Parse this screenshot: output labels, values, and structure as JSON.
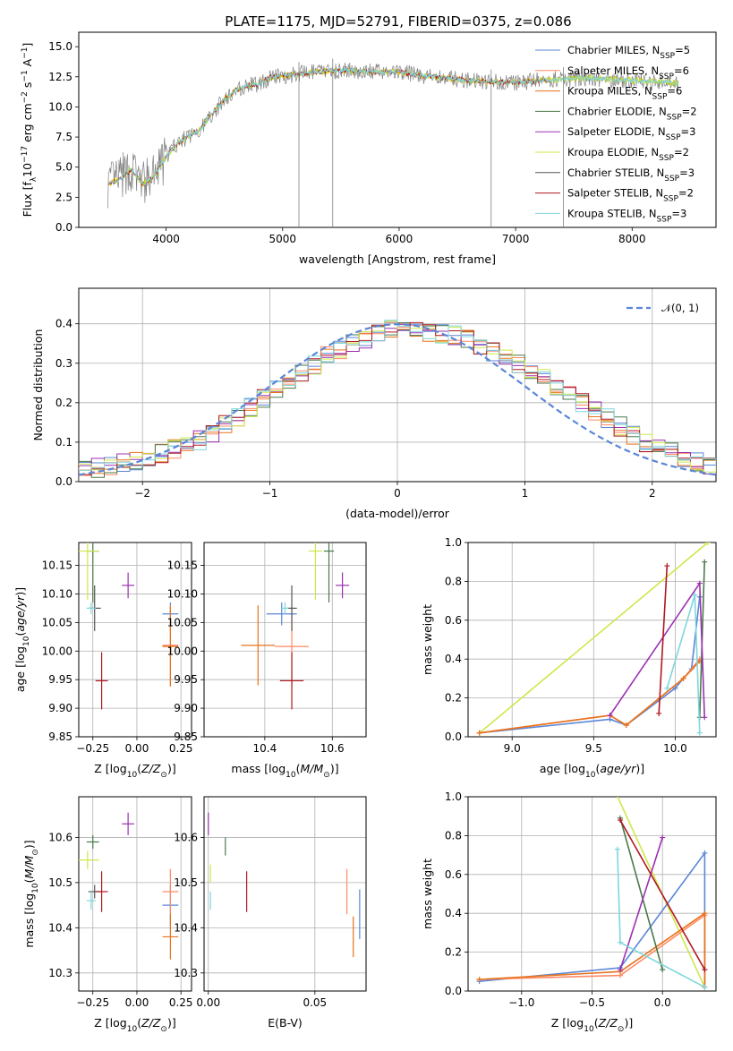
{
  "title": "PLATE=1175, MJD=52791, FIBERID=0375, z=0.086",
  "colors": {
    "Chabrier MILES": "#5b86d6",
    "Salpeter MILES": "#ff8a65",
    "Kroupa MILES": "#e8731c",
    "Chabrier ELODIE": "#4a7a4a",
    "Salpeter ELODIE": "#9b30b0",
    "Kroupa ELODIE": "#cde84a",
    "Chabrier STELIB": "#555555",
    "Salpeter STELIB": "#b01820",
    "Kroupa STELIB": "#7fd6dc",
    "model_spectrum": "#d4d400",
    "gaussian": "#5b86d6"
  },
  "legend_spectrum": [
    {
      "text": "Chabrier MILES, N",
      "sub": "SSP",
      "val": "=5",
      "color": "#5b86d6"
    },
    {
      "text": "Salpeter MILES, N",
      "sub": "SSP",
      "val": "=6",
      "color": "#ff8a65"
    },
    {
      "text": "Kroupa MILES, N",
      "sub": "SSP",
      "val": "=6",
      "color": "#e8731c"
    },
    {
      "text": "Chabrier ELODIE, N",
      "sub": "SSP",
      "val": "=2",
      "color": "#4a7a4a"
    },
    {
      "text": "Salpeter ELODIE, N",
      "sub": "SSP",
      "val": "=3",
      "color": "#9b30b0"
    },
    {
      "text": "Kroupa ELODIE, N",
      "sub": "SSP",
      "val": "=2",
      "color": "#cde84a"
    },
    {
      "text": "Chabrier STELIB, N",
      "sub": "SSP",
      "val": "=3",
      "color": "#555555"
    },
    {
      "text": "Salpeter STELIB, N",
      "sub": "SSP",
      "val": "=2",
      "color": "#b01820"
    },
    {
      "text": "Kroupa STELIB, N",
      "sub": "SSP",
      "val": "=3",
      "color": "#7fd6dc"
    }
  ],
  "legend_hist": "𝒩(0, 1)",
  "chart_data": [
    {
      "type": "line",
      "xlabel": "wavelength [Angstrom, rest frame]",
      "ylabel": "Flux [f_λ 10^-17 erg cm^-2 s^-1 A^-1]",
      "xlim": [
        3250,
        8720
      ],
      "ylim": [
        0,
        16.2
      ],
      "xticks": [
        4000,
        5000,
        6000,
        7000,
        8000
      ],
      "yticks": [
        0.0,
        2.5,
        5.0,
        7.5,
        10.0,
        12.5,
        15.0
      ],
      "ytick_labels": [
        "0.0",
        "2.5",
        "5.0",
        "7.5",
        "10.0",
        "12.5",
        "15.0"
      ],
      "continuum": {
        "x": [
          3500,
          3600,
          3700,
          3800,
          3900,
          4000,
          4100,
          4200,
          4300,
          4400,
          4500,
          4600,
          4700,
          4800,
          4900,
          5000,
          5200,
          5400,
          5600,
          5800,
          6000,
          6200,
          6400,
          6600,
          6800,
          7000,
          7200,
          7400,
          7600,
          7800,
          8000,
          8200,
          8400
        ],
        "y": [
          3.6,
          4.0,
          4.8,
          3.6,
          4.2,
          5.9,
          7.0,
          7.6,
          8.2,
          9.5,
          10.6,
          11.4,
          11.8,
          11.9,
          12.5,
          12.6,
          12.8,
          13.0,
          13.0,
          12.9,
          12.9,
          12.6,
          12.4,
          12.2,
          12.1,
          12.0,
          12.2,
          12.3,
          12.4,
          12.3,
          12.2,
          12.1,
          12.0
        ]
      },
      "spikes": [
        5140,
        5430,
        6790,
        7410
      ]
    },
    {
      "type": "histogram",
      "xlabel": "(data-model)/error",
      "ylabel": "Normed distribution",
      "xlim": [
        -2.5,
        2.5
      ],
      "ylim": [
        0,
        0.49
      ],
      "xticks": [
        -2,
        -1,
        0,
        1,
        2
      ],
      "xtick_labels": [
        "−2",
        "−1",
        "0",
        "1",
        "2"
      ],
      "yticks": [
        0.0,
        0.1,
        0.2,
        0.3,
        0.4
      ],
      "ytick_labels": [
        "0.0",
        "0.1",
        "0.2",
        "0.3",
        "0.4"
      ],
      "bin_width": 0.1,
      "center_profile": {
        "x": [
          -2.5,
          -2.0,
          -1.5,
          -1.0,
          -0.5,
          0.0,
          0.5,
          1.0,
          1.5,
          2.0,
          2.5
        ],
        "y": [
          0.025,
          0.055,
          0.11,
          0.22,
          0.33,
          0.39,
          0.37,
          0.29,
          0.19,
          0.09,
          0.035
        ]
      }
    },
    {
      "type": "scatter",
      "xlabel": "Z [log10(Z/Z⊙)]",
      "ylabel": "age  [log10(age/yr)]",
      "xlim": [
        -0.33,
        0.31
      ],
      "ylim": [
        9.85,
        10.19
      ],
      "xticks": [
        -0.25,
        0,
        0.25
      ],
      "xtick_labels": [
        "−0.25",
        "0.00",
        "0.25"
      ],
      "yticks": [
        9.85,
        9.9,
        9.95,
        10.0,
        10.05,
        10.1,
        10.15
      ],
      "ytick_labels": [
        "9.85",
        "9.90",
        "9.95",
        "10.00",
        "10.05",
        "10.10",
        "10.15"
      ],
      "points": [
        {
          "s": "Chabrier MILES",
          "x": 0.19,
          "y": 10.065,
          "xe": 0.09,
          "ye": 0.04
        },
        {
          "s": "Salpeter MILES",
          "x": 0.19,
          "y": 10.01,
          "xe": 0.09,
          "ye": 0.14
        },
        {
          "s": "Kroupa MILES",
          "x": 0.19,
          "y": 10.008,
          "xe": 0.09,
          "ye": 0.14
        },
        {
          "s": "Chabrier ELODIE",
          "x": -0.25,
          "y": 10.175,
          "xe": 0.07,
          "ye": 0.18
        },
        {
          "s": "Salpeter ELODIE",
          "x": -0.05,
          "y": 10.115,
          "xe": 0.07,
          "ye": 0.045
        },
        {
          "s": "Kroupa ELODIE",
          "x": -0.28,
          "y": 10.175,
          "xe": 0.13,
          "ye": 0.17
        },
        {
          "s": "Chabrier STELIB",
          "x": -0.24,
          "y": 10.075,
          "xe": 0.07,
          "ye": 0.08
        },
        {
          "s": "Salpeter STELIB",
          "x": -0.2,
          "y": 9.948,
          "xe": 0.07,
          "ye": 0.1
        },
        {
          "s": "Kroupa STELIB",
          "x": -0.26,
          "y": 10.075,
          "xe": 0.05,
          "ye": 0.02
        }
      ]
    },
    {
      "type": "scatter",
      "xlabel": "mass [log10(M/M⊙)]",
      "ylabel": "",
      "xlim": [
        10.22,
        10.7
      ],
      "ylim": [
        9.85,
        10.19
      ],
      "xticks": [
        10.4,
        10.6
      ],
      "xtick_labels": [
        "10.4",
        "10.6"
      ],
      "yticks": [
        9.85,
        9.9,
        9.95,
        10.0,
        10.05,
        10.1,
        10.15
      ],
      "ytick_labels": [
        "9.85",
        "9.90",
        "9.95",
        "10.00",
        "10.05",
        "10.10",
        "10.15"
      ],
      "points": [
        {
          "s": "Chabrier MILES",
          "x": 10.45,
          "y": 10.065,
          "xe": 0.09,
          "ye": 0.04
        },
        {
          "s": "Salpeter MILES",
          "x": 10.48,
          "y": 10.008,
          "xe": 0.1,
          "ye": 0.14
        },
        {
          "s": "Kroupa MILES",
          "x": 10.38,
          "y": 10.01,
          "xe": 0.1,
          "ye": 0.14
        },
        {
          "s": "Chabrier ELODIE",
          "x": 10.59,
          "y": 10.175,
          "xe": 0.03,
          "ye": 0.18
        },
        {
          "s": "Salpeter ELODIE",
          "x": 10.63,
          "y": 10.115,
          "xe": 0.04,
          "ye": 0.045
        },
        {
          "s": "Kroupa ELODIE",
          "x": 10.55,
          "y": 10.175,
          "xe": 0.04,
          "ye": 0.17
        },
        {
          "s": "Chabrier STELIB",
          "x": 10.48,
          "y": 10.075,
          "xe": 0.03,
          "ye": 0.08
        },
        {
          "s": "Salpeter STELIB",
          "x": 10.48,
          "y": 9.948,
          "xe": 0.07,
          "ye": 0.1
        },
        {
          "s": "Kroupa STELIB",
          "x": 10.46,
          "y": 10.075,
          "xe": 0.02,
          "ye": 0.02
        }
      ]
    },
    {
      "type": "line",
      "xlabel": "age  [log10(age/yr)]",
      "ylabel": "mass weight",
      "xlim": [
        8.73,
        10.25
      ],
      "ylim": [
        0,
        1.0
      ],
      "xticks": [
        9.0,
        9.5,
        10.0
      ],
      "xtick_labels": [
        "9.0",
        "9.5",
        "10.0"
      ],
      "yticks": [
        0.0,
        0.2,
        0.4,
        0.6,
        0.8,
        1.0
      ],
      "ytick_labels": [
        "0.0",
        "0.2",
        "0.4",
        "0.6",
        "0.8",
        "1.0"
      ],
      "series": [
        {
          "s": "Kroupa ELODIE",
          "x": [
            8.8,
            10.2
          ],
          "y": [
            0.02,
            1.0
          ]
        },
        {
          "s": "Chabrier MILES",
          "x": [
            8.8,
            9.6,
            9.7,
            10.0,
            10.1,
            10.15
          ],
          "y": [
            0.02,
            0.09,
            0.06,
            0.25,
            0.35,
            0.72
          ]
        },
        {
          "s": "Salpeter MILES",
          "x": [
            8.8,
            9.6,
            9.7,
            10.05,
            10.15
          ],
          "y": [
            0.02,
            0.11,
            0.06,
            0.3,
            0.4
          ]
        },
        {
          "s": "Kroupa MILES",
          "x": [
            8.8,
            9.6,
            9.7,
            10.05,
            10.15
          ],
          "y": [
            0.02,
            0.11,
            0.06,
            0.3,
            0.39
          ]
        },
        {
          "s": "Chabrier ELODIE",
          "x": [
            10.15,
            10.18
          ],
          "y": [
            0.1,
            0.9
          ]
        },
        {
          "s": "Salpeter ELODIE",
          "x": [
            9.6,
            10.15,
            10.18
          ],
          "y": [
            0.11,
            0.79,
            0.1
          ]
        },
        {
          "s": "Salpeter STELIB",
          "x": [
            9.9,
            9.95
          ],
          "y": [
            0.12,
            0.88
          ]
        },
        {
          "s": "Kroupa STELIB",
          "x": [
            9.95,
            10.12,
            10.15
          ],
          "y": [
            0.25,
            0.73,
            0.02
          ]
        }
      ]
    },
    {
      "type": "scatter",
      "xlabel": "Z [log10(Z/Z⊙)]",
      "ylabel": "mass [log10(M/M⊙)]",
      "xlim": [
        -0.33,
        0.31
      ],
      "ylim": [
        10.26,
        10.69
      ],
      "xticks": [
        -0.25,
        0,
        0.25
      ],
      "xtick_labels": [
        "−0.25",
        "0.00",
        "0.25"
      ],
      "yticks": [
        10.3,
        10.4,
        10.5,
        10.6
      ],
      "ytick_labels": [
        "10.3",
        "10.4",
        "10.5",
        "10.6"
      ],
      "points": [
        {
          "s": "Chabrier MILES",
          "x": 0.19,
          "y": 10.45,
          "xe": 0.09,
          "ye": 0.09
        },
        {
          "s": "Salpeter MILES",
          "x": 0.19,
          "y": 10.48,
          "xe": 0.09,
          "ye": 0.1
        },
        {
          "s": "Kroupa MILES",
          "x": 0.19,
          "y": 10.38,
          "xe": 0.09,
          "ye": 0.1
        },
        {
          "s": "Chabrier ELODIE",
          "x": -0.25,
          "y": 10.59,
          "xe": 0.07,
          "ye": 0.03
        },
        {
          "s": "Salpeter ELODIE",
          "x": -0.05,
          "y": 10.63,
          "xe": 0.07,
          "ye": 0.05
        },
        {
          "s": "Kroupa ELODIE",
          "x": -0.28,
          "y": 10.55,
          "xe": 0.13,
          "ye": 0.04
        },
        {
          "s": "Chabrier STELIB",
          "x": -0.24,
          "y": 10.48,
          "xe": 0.07,
          "ye": 0.03
        },
        {
          "s": "Salpeter STELIB",
          "x": -0.2,
          "y": 10.48,
          "xe": 0.07,
          "ye": 0.09
        },
        {
          "s": "Kroupa STELIB",
          "x": -0.26,
          "y": 10.46,
          "xe": 0.05,
          "ye": 0.04
        }
      ]
    },
    {
      "type": "scatter",
      "xlabel": "E(B-V)",
      "ylabel": "",
      "xlim": [
        -0.002,
        0.074
      ],
      "ylim": [
        10.26,
        10.69
      ],
      "xticks": [
        0.0,
        0.05
      ],
      "xtick_labels": [
        "0.00",
        "0.05"
      ],
      "yticks": [
        10.3,
        10.4,
        10.5,
        10.6
      ],
      "ytick_labels": [
        "10.3",
        "10.4",
        "10.5",
        "10.6"
      ],
      "points": [
        {
          "s": "Chabrier MILES",
          "x": 0.071,
          "y": 10.43,
          "xe": 0,
          "ye": 0.11
        },
        {
          "s": "Salpeter MILES",
          "x": 0.065,
          "y": 10.48,
          "xe": 0,
          "ye": 0.1
        },
        {
          "s": "Kroupa MILES",
          "x": 0.068,
          "y": 10.38,
          "xe": 0,
          "ye": 0.09
        },
        {
          "s": "Chabrier ELODIE",
          "x": 0.008,
          "y": 10.58,
          "xe": 0,
          "ye": 0.04
        },
        {
          "s": "Salpeter ELODIE",
          "x": 0.0,
          "y": 10.63,
          "xe": 0,
          "ye": 0.05
        },
        {
          "s": "Kroupa ELODIE",
          "x": 0.001,
          "y": 10.52,
          "xe": 0,
          "ye": 0.04
        },
        {
          "s": "Salpeter STELIB",
          "x": 0.018,
          "y": 10.48,
          "xe": 0,
          "ye": 0.09
        },
        {
          "s": "Kroupa STELIB",
          "x": 0.001,
          "y": 10.46,
          "xe": 0,
          "ye": 0.04
        }
      ]
    },
    {
      "type": "line",
      "xlabel": "Z [log10(Z/Z⊙)]",
      "ylabel": "mass weight",
      "xlim": [
        -1.38,
        0.38
      ],
      "ylim": [
        0,
        1.0
      ],
      "xticks": [
        -1.0,
        -0.5,
        0.0
      ],
      "xtick_labels": [
        "−1.0",
        "−0.5",
        "0.0"
      ],
      "yticks": [
        0.0,
        0.2,
        0.4,
        0.6,
        0.8,
        1.0
      ],
      "ytick_labels": [
        "0.0",
        "0.2",
        "0.4",
        "0.6",
        "0.8",
        "1.0"
      ],
      "series": [
        {
          "s": "Kroupa ELODIE",
          "x": [
            -0.35,
            0.3
          ],
          "y": [
            1.05,
            0.02
          ]
        },
        {
          "s": "Chabrier MILES",
          "x": [
            -1.3,
            -0.3,
            0.3,
            0.3
          ],
          "y": [
            0.05,
            0.12,
            0.71,
            0.02
          ]
        },
        {
          "s": "Salpeter MILES",
          "x": [
            -1.3,
            -0.3,
            0.3,
            0.3
          ],
          "y": [
            0.06,
            0.08,
            0.39,
            0.02
          ]
        },
        {
          "s": "Kroupa MILES",
          "x": [
            -1.3,
            -0.3,
            0.3,
            0.3
          ],
          "y": [
            0.06,
            0.1,
            0.4,
            0.02
          ]
        },
        {
          "s": "Chabrier ELODIE",
          "x": [
            -0.3,
            0.0
          ],
          "y": [
            0.89,
            0.11
          ]
        },
        {
          "s": "Salpeter ELODIE",
          "x": [
            -0.3,
            0.0
          ],
          "y": [
            0.11,
            0.79
          ]
        },
        {
          "s": "Salpeter STELIB",
          "x": [
            -0.3,
            0.3
          ],
          "y": [
            0.88,
            0.11
          ]
        },
        {
          "s": "Kroupa STELIB",
          "x": [
            -0.32,
            -0.3,
            0.3
          ],
          "y": [
            0.73,
            0.25,
            0.02
          ]
        }
      ]
    }
  ]
}
